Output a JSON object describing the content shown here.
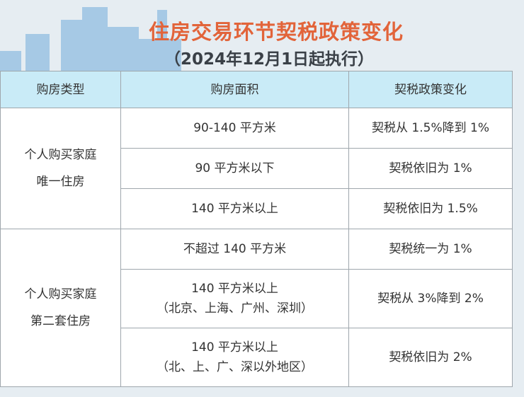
{
  "header": {
    "title": "住房交易环节契税政策变化",
    "subtitle": "（2024年12月1日起执行）"
  },
  "colors": {
    "title": "#e2643a",
    "header_bg": "#c9ebf7",
    "background": "#e6edf2"
  },
  "table": {
    "columns": [
      "购房类型",
      "购房面积",
      "契税政策变化"
    ],
    "groups": [
      {
        "type": [
          "个人购买家庭",
          "唯一住房"
        ],
        "rows": [
          {
            "area": "90-140 平方米",
            "area_note": "",
            "policy": "契税从 1.5%降到 1%"
          },
          {
            "area": "90 平方米以下",
            "area_note": "",
            "policy": "契税依旧为 1%"
          },
          {
            "area": "140 平方米以上",
            "area_note": "",
            "policy": "契税依旧为 1.5%"
          }
        ]
      },
      {
        "type": [
          "个人购买家庭",
          "第二套住房"
        ],
        "rows": [
          {
            "area": "不超过 140 平方米",
            "area_note": "",
            "policy": "契税统一为 1%"
          },
          {
            "area": "140 平方米以上",
            "area_note": "（北京、上海、广州、深圳）",
            "policy": "契税从 3%降到 2%"
          },
          {
            "area": "140 平方米以上",
            "area_note": "（北、上、广、深以外地区）",
            "policy": "契税依旧为 2%"
          }
        ]
      }
    ]
  }
}
